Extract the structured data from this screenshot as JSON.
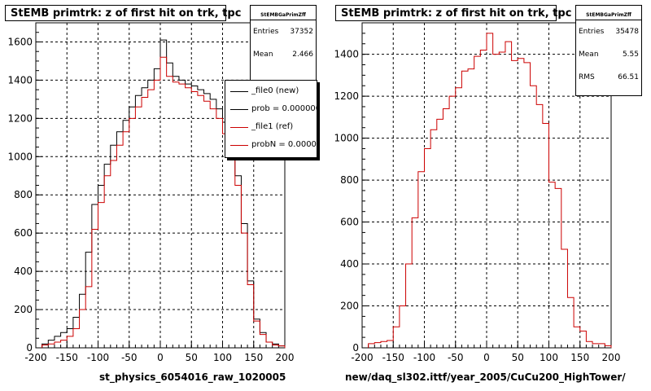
{
  "footer_text": "",
  "chart_data": [
    {
      "type": "line",
      "title": "StEMB primtrk: z of first hit on trk, tpc",
      "xlabel": "st_physics_6054016_raw_1020005",
      "ylabel": "",
      "xlim": [
        -200,
        200
      ],
      "ylim": [
        0,
        1700
      ],
      "grid": true,
      "x_ticks": [
        "-200",
        "-150",
        "-100",
        "-50",
        "0",
        "50",
        "100",
        "150",
        "200"
      ],
      "y_ticks": [
        "0",
        "200",
        "400",
        "600",
        "800",
        "1000",
        "1200",
        "1400",
        "1600"
      ],
      "stats": {
        "name": "StEMBGaPrimZff",
        "entries_label": "Entries",
        "entries": "37352",
        "mean_label": "Mean",
        "mean": "2.466"
      },
      "legend": {
        "placement": "top-right",
        "entries": [
          {
            "label": "_file0 (new)",
            "color": "#000000"
          },
          {
            "label": "prob = 0.000000",
            "color": "#000000"
          },
          {
            "label": "_file1 (ref)",
            "color": "#cc0000"
          },
          {
            "label": "probN = 0.000000",
            "color": "#cc0000"
          }
        ]
      },
      "bin_edges": [
        -190,
        -180,
        -170,
        -160,
        -150,
        -140,
        -130,
        -120,
        -110,
        -100,
        -90,
        -80,
        -70,
        -60,
        -50,
        -40,
        -30,
        -20,
        -10,
        0,
        10,
        20,
        30,
        40,
        50,
        60,
        70,
        80,
        90,
        100,
        110,
        120,
        130,
        140,
        150,
        160,
        170,
        180,
        190,
        200
      ],
      "series": [
        {
          "name": "_file0 (new)",
          "color": "#000000",
          "values": [
            20,
            40,
            60,
            80,
            100,
            160,
            280,
            500,
            750,
            850,
            960,
            1060,
            1130,
            1190,
            1260,
            1320,
            1360,
            1400,
            1460,
            1610,
            1490,
            1420,
            1400,
            1380,
            1370,
            1350,
            1330,
            1300,
            1250,
            1180,
            1080,
            900,
            650,
            350,
            150,
            80,
            30,
            20,
            10
          ]
        },
        {
          "name": "_file1 (ref)",
          "color": "#cc0000",
          "values": [
            15,
            20,
            30,
            40,
            60,
            100,
            200,
            320,
            620,
            760,
            900,
            980,
            1060,
            1130,
            1200,
            1260,
            1310,
            1350,
            1400,
            1520,
            1420,
            1390,
            1380,
            1360,
            1340,
            1320,
            1290,
            1250,
            1200,
            1120,
            1020,
            850,
            600,
            330,
            140,
            70,
            30,
            15,
            10
          ]
        }
      ]
    },
    {
      "type": "line",
      "title": "StEMB primtrk: z of first hit on trk, tpc",
      "xlabel": "new/daq_sl302.ittf/year_2005/CuCu200_HighTower/",
      "ylabel": "",
      "xlim": [
        -200,
        200
      ],
      "ylim": [
        0,
        1550
      ],
      "grid": true,
      "x_ticks": [
        "-200",
        "-150",
        "-100",
        "-50",
        "0",
        "50",
        "100",
        "150",
        "200"
      ],
      "y_ticks": [
        "0",
        "200",
        "400",
        "600",
        "800",
        "1000",
        "1200",
        "1400"
      ],
      "stats": {
        "name": "StEMBGaPrimZff",
        "entries_label": "Entries",
        "entries": "35478",
        "mean_label": "Mean",
        "mean": "5.55",
        "rms_label": "RMS",
        "rms": "66.51"
      },
      "bin_edges": [
        -190,
        -180,
        -170,
        -160,
        -150,
        -140,
        -130,
        -120,
        -110,
        -100,
        -90,
        -80,
        -70,
        -60,
        -50,
        -40,
        -30,
        -20,
        -10,
        0,
        10,
        20,
        30,
        40,
        50,
        60,
        70,
        80,
        90,
        100,
        110,
        120,
        130,
        140,
        150,
        160,
        170,
        180,
        190,
        200
      ],
      "series": [
        {
          "name": "",
          "color": "#cc0000",
          "values": [
            20,
            25,
            30,
            35,
            100,
            200,
            400,
            620,
            840,
            950,
            1040,
            1090,
            1140,
            1200,
            1240,
            1320,
            1330,
            1390,
            1420,
            1500,
            1400,
            1410,
            1460,
            1370,
            1380,
            1360,
            1250,
            1160,
            1070,
            790,
            760,
            470,
            240,
            100,
            80,
            30,
            20,
            20,
            10
          ]
        }
      ]
    }
  ]
}
